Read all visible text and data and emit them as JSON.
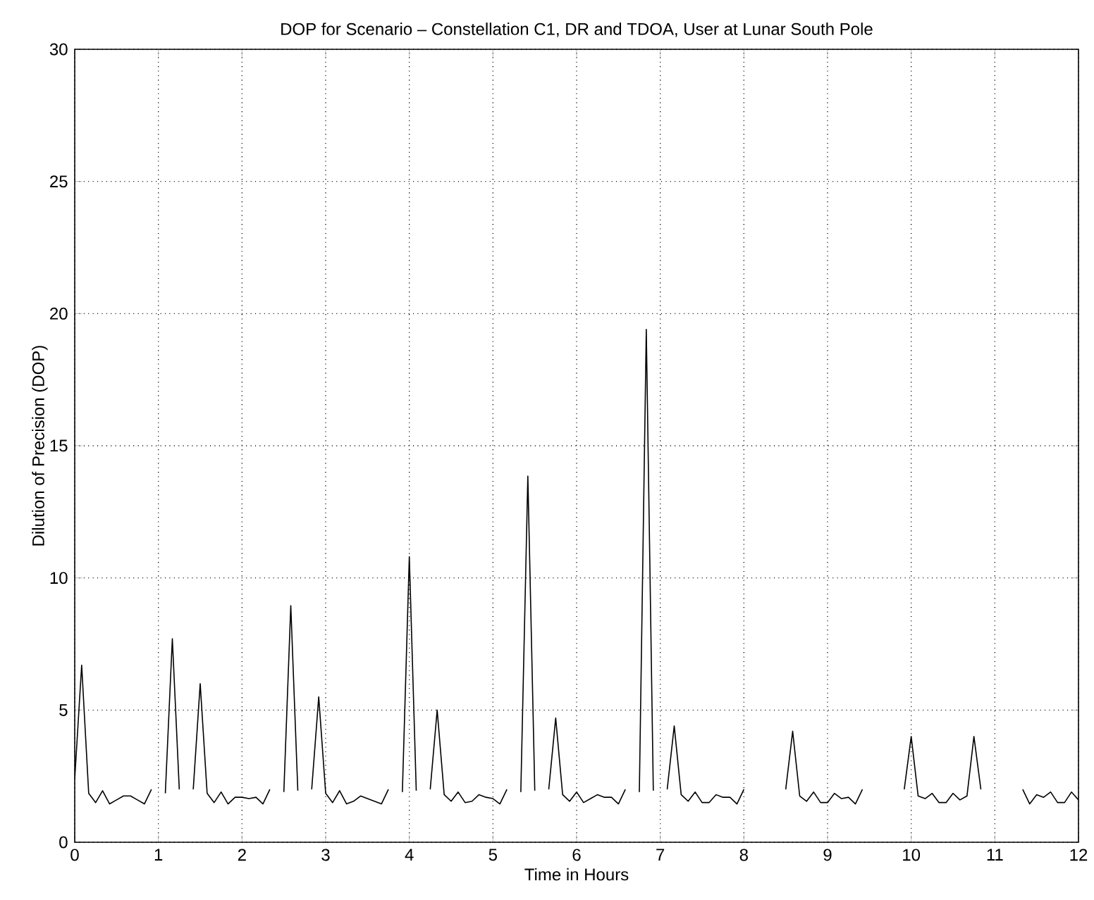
{
  "chart_data": {
    "type": "line",
    "title": "DOP for Scenario – Constellation C1, DR and TDOA, User at Lunar South Pole",
    "xlabel": "Time in Hours",
    "ylabel": "Dilution of Precision (DOP)",
    "x": [
      0,
      0.083,
      0.167,
      0.25,
      0.333,
      0.417,
      0.5,
      0.583,
      0.667,
      0.75,
      0.833,
      0.917,
      1,
      1.083,
      1.167,
      1.25,
      1.333,
      1.417,
      1.5,
      1.583,
      1.667,
      1.75,
      1.833,
      1.917,
      2,
      2.083,
      2.167,
      2.25,
      2.333,
      2.417,
      2.5,
      2.583,
      2.667,
      2.75,
      2.833,
      2.917,
      3,
      3.083,
      3.167,
      3.25,
      3.333,
      3.417,
      3.5,
      3.583,
      3.667,
      3.75,
      3.833,
      3.917,
      4,
      4.083,
      4.167,
      4.25,
      4.333,
      4.417,
      4.5,
      4.583,
      4.667,
      4.75,
      4.833,
      4.917,
      5,
      5.083,
      5.167,
      5.25,
      5.333,
      5.417,
      5.5,
      5.583,
      5.667,
      5.75,
      5.833,
      5.917,
      6,
      6.083,
      6.167,
      6.25,
      6.333,
      6.417,
      6.5,
      6.583,
      6.667,
      6.75,
      6.833,
      6.917,
      7,
      7.083,
      7.167,
      7.25,
      7.333,
      7.417,
      7.5,
      7.583,
      7.667,
      7.75,
      7.833,
      7.917,
      8,
      8.083,
      8.167,
      8.25,
      8.333,
      8.417,
      8.5,
      8.583,
      8.667,
      8.75,
      8.833,
      8.917,
      9,
      9.083,
      9.167,
      9.25,
      9.333,
      9.417,
      9.5,
      9.583,
      9.667,
      9.75,
      9.833,
      9.917,
      10,
      10.083,
      10.167,
      10.25,
      10.333,
      10.417,
      10.5,
      10.583,
      10.667,
      10.75,
      10.833,
      10.917,
      11,
      11.083,
      11.167,
      11.25,
      11.333,
      11.417,
      11.5,
      11.583,
      11.667,
      11.75,
      11.833,
      11.917,
      12
    ],
    "series": [
      {
        "color": "#000000",
        "values": [
          2.4,
          6.7,
          1.85,
          1.5,
          1.95,
          1.45,
          1.6,
          1.75,
          1.75,
          1.6,
          1.45,
          2.0,
          null,
          1.85,
          7.7,
          2.0,
          null,
          2.0,
          6.0,
          1.85,
          1.5,
          1.9,
          1.45,
          1.7,
          1.7,
          1.65,
          1.7,
          1.45,
          2.0,
          null,
          1.9,
          8.95,
          1.95,
          null,
          2.0,
          5.5,
          1.85,
          1.5,
          1.95,
          1.45,
          1.55,
          1.75,
          1.65,
          1.55,
          1.45,
          2.0,
          null,
          1.9,
          10.8,
          1.95,
          null,
          2.0,
          5.0,
          1.8,
          1.55,
          1.9,
          1.5,
          1.55,
          1.8,
          1.7,
          1.65,
          1.45,
          2.0,
          null,
          1.9,
          13.85,
          1.95,
          null,
          2.0,
          4.7,
          1.8,
          1.55,
          1.9,
          1.5,
          1.65,
          1.8,
          1.7,
          1.7,
          1.45,
          2.0,
          null,
          1.9,
          19.4,
          1.95,
          null,
          2.0,
          4.4,
          1.8,
          1.55,
          1.9,
          1.5,
          1.5,
          1.8,
          1.7,
          1.7,
          1.45,
          2.0,
          null,
          null,
          null,
          null,
          null,
          2.0,
          4.2,
          1.75,
          1.55,
          1.9,
          1.5,
          1.5,
          1.85,
          1.65,
          1.7,
          1.45,
          2.0,
          null,
          null,
          null,
          null,
          null,
          2.0,
          4.0,
          1.75,
          1.65,
          1.85,
          1.5,
          1.5,
          1.85,
          1.6,
          1.75,
          4.0,
          2.0,
          null,
          null,
          null,
          null,
          null,
          2.0,
          1.45,
          1.8,
          1.7,
          1.9,
          1.5,
          1.5,
          1.9,
          1.6
        ]
      }
    ],
    "xlim": [
      0,
      12
    ],
    "ylim": [
      0,
      30
    ],
    "xticks": [
      0,
      1,
      2,
      3,
      4,
      5,
      6,
      7,
      8,
      9,
      10,
      11,
      12
    ],
    "yticks": [
      0,
      5,
      10,
      15,
      20,
      25,
      30
    ],
    "grid": true,
    "marker": "none",
    "line_style": "solid"
  }
}
